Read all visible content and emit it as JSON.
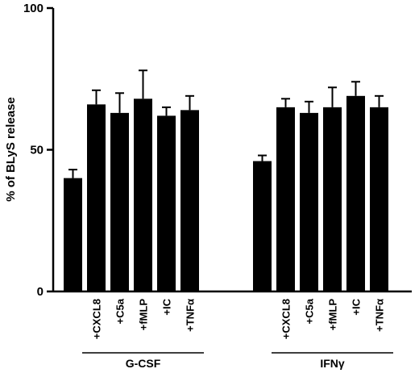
{
  "chart_data": {
    "type": "bar",
    "ylabel": "% of BLyS release",
    "ylim": [
      0,
      100
    ],
    "yticks": [
      0,
      50,
      100
    ],
    "grid": false,
    "colors": {
      "bar": "#000000",
      "axis": "#000000"
    },
    "groups": [
      {
        "name": "G-CSF",
        "bars": [
          {
            "label": "",
            "value": 40,
            "error": 3
          },
          {
            "label": "+CXCL8",
            "value": 66,
            "error": 5
          },
          {
            "label": "+C5a",
            "value": 63,
            "error": 7
          },
          {
            "label": "+fMLP",
            "value": 68,
            "error": 10
          },
          {
            "label": "+IC",
            "value": 62,
            "error": 3
          },
          {
            "label": "+TNFα",
            "value": 64,
            "error": 5
          }
        ]
      },
      {
        "name": "IFNγ",
        "bars": [
          {
            "label": "",
            "value": 46,
            "error": 2
          },
          {
            "label": "+CXCL8",
            "value": 65,
            "error": 3
          },
          {
            "label": "+C5a",
            "value": 63,
            "error": 4
          },
          {
            "label": "+fMLP",
            "value": 65,
            "error": 7
          },
          {
            "label": "+IC",
            "value": 69,
            "error": 5
          },
          {
            "label": "+TNFα",
            "value": 65,
            "error": 4
          }
        ]
      }
    ]
  }
}
